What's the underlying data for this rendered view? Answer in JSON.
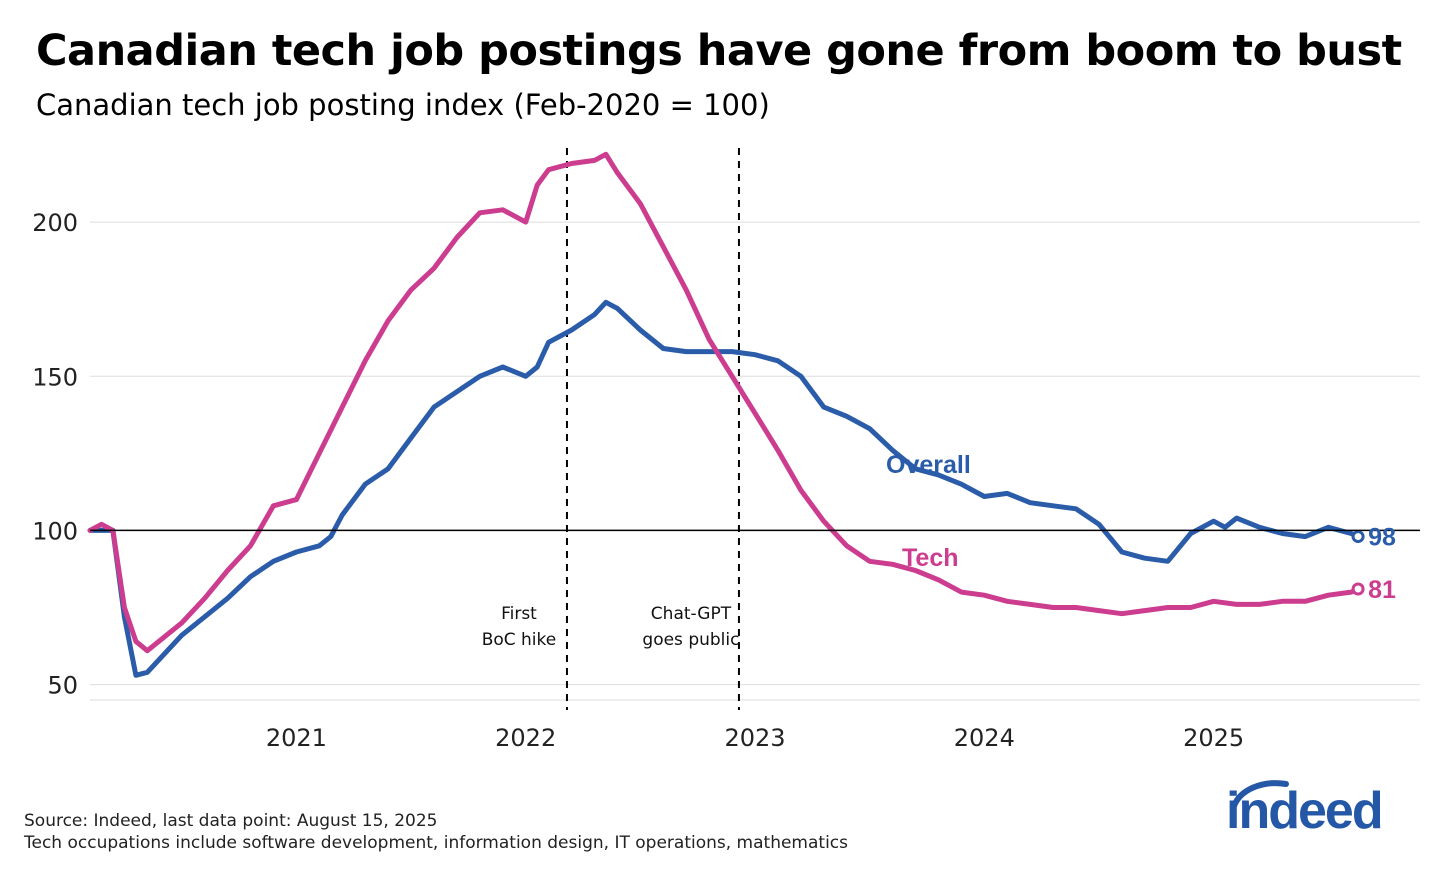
{
  "title": "Canadian tech job postings have gone from boom to bust",
  "subtitle": "Canadian tech job posting index (Feb-2020 = 100)",
  "source_note": "Source: Indeed, last data point: August 15, 2025",
  "definition_note": "Tech occupations include software development, information design, IT operations, mathematics",
  "logo_text": "indeed",
  "colors": {
    "overall": "#2a5caa",
    "tech": "#cc3d8f",
    "logo": "#2557a7",
    "grid": "#dddddd"
  },
  "chart_data": {
    "type": "line",
    "title": "Canadian tech job postings have gone from boom to bust",
    "ylabel": "Canadian tech job posting index (Feb-2020 = 100)",
    "xlim": [
      2020.1,
      2025.9
    ],
    "ylim": [
      45,
      225
    ],
    "yticks": [
      50,
      100,
      150,
      200
    ],
    "xticks": [
      {
        "value": 2021.0,
        "label": "2021"
      },
      {
        "value": 2022.0,
        "label": "2022"
      },
      {
        "value": 2023.0,
        "label": "2023"
      },
      {
        "value": 2024.0,
        "label": "2024"
      },
      {
        "value": 2025.0,
        "label": "2025"
      }
    ],
    "baseline": 100,
    "series": [
      {
        "name": "Overall",
        "label_text": "Overall",
        "end_label": "98",
        "color": "#2a5caa",
        "x": [
          2020.1,
          2020.15,
          2020.2,
          2020.25,
          2020.3,
          2020.35,
          2020.4,
          2020.5,
          2020.6,
          2020.7,
          2020.8,
          2020.9,
          2021.0,
          2021.1,
          2021.15,
          2021.2,
          2021.3,
          2021.4,
          2021.5,
          2021.6,
          2021.7,
          2021.8,
          2021.9,
          2022.0,
          2022.05,
          2022.1,
          2022.2,
          2022.3,
          2022.35,
          2022.4,
          2022.5,
          2022.6,
          2022.7,
          2022.8,
          2022.9,
          2023.0,
          2023.1,
          2023.2,
          2023.3,
          2023.4,
          2023.5,
          2023.6,
          2023.7,
          2023.8,
          2023.9,
          2024.0,
          2024.1,
          2024.2,
          2024.3,
          2024.4,
          2024.5,
          2024.6,
          2024.7,
          2024.8,
          2024.9,
          2025.0,
          2025.05,
          2025.1,
          2025.2,
          2025.3,
          2025.4,
          2025.5,
          2025.6,
          2025.63
        ],
        "y": [
          100,
          100,
          100,
          72,
          53,
          54,
          58,
          66,
          72,
          78,
          85,
          90,
          93,
          95,
          98,
          105,
          115,
          120,
          130,
          140,
          145,
          150,
          153,
          150,
          153,
          161,
          165,
          170,
          174,
          172,
          165,
          159,
          158,
          158,
          158,
          157,
          155,
          150,
          140,
          137,
          133,
          126,
          120,
          118,
          115,
          111,
          112,
          109,
          108,
          107,
          102,
          93,
          91,
          90,
          99,
          103,
          101,
          104,
          101,
          99,
          98,
          101,
          99,
          98
        ]
      },
      {
        "name": "Tech",
        "label_text": "Tech",
        "end_label": "81",
        "color": "#cc3d8f",
        "x": [
          2020.1,
          2020.15,
          2020.2,
          2020.25,
          2020.3,
          2020.35,
          2020.4,
          2020.5,
          2020.6,
          2020.7,
          2020.8,
          2020.9,
          2021.0,
          2021.1,
          2021.2,
          2021.3,
          2021.4,
          2021.5,
          2021.6,
          2021.7,
          2021.8,
          2021.9,
          2022.0,
          2022.05,
          2022.1,
          2022.2,
          2022.3,
          2022.35,
          2022.4,
          2022.5,
          2022.6,
          2022.7,
          2022.8,
          2022.9,
          2023.0,
          2023.1,
          2023.2,
          2023.3,
          2023.4,
          2023.5,
          2023.6,
          2023.7,
          2023.8,
          2023.9,
          2024.0,
          2024.1,
          2024.2,
          2024.3,
          2024.4,
          2024.5,
          2024.6,
          2024.7,
          2024.8,
          2024.9,
          2025.0,
          2025.1,
          2025.2,
          2025.3,
          2025.4,
          2025.5,
          2025.6,
          2025.63
        ],
        "y": [
          100,
          102,
          100,
          75,
          64,
          61,
          64,
          70,
          78,
          87,
          95,
          108,
          110,
          125,
          140,
          155,
          168,
          178,
          185,
          195,
          203,
          204,
          200,
          212,
          217,
          219,
          220,
          222,
          216,
          206,
          192,
          178,
          162,
          150,
          138,
          126,
          113,
          103,
          95,
          90,
          89,
          87,
          84,
          80,
          79,
          77,
          76,
          75,
          75,
          74,
          73,
          74,
          75,
          75,
          77,
          76,
          76,
          77,
          77,
          79,
          80,
          81
        ]
      }
    ],
    "annotations": [
      {
        "x": 2022.18,
        "lines": [
          "First",
          "BoC hike"
        ]
      },
      {
        "x": 2022.93,
        "lines": [
          "Chat-GPT",
          "goes public"
        ]
      }
    ]
  }
}
